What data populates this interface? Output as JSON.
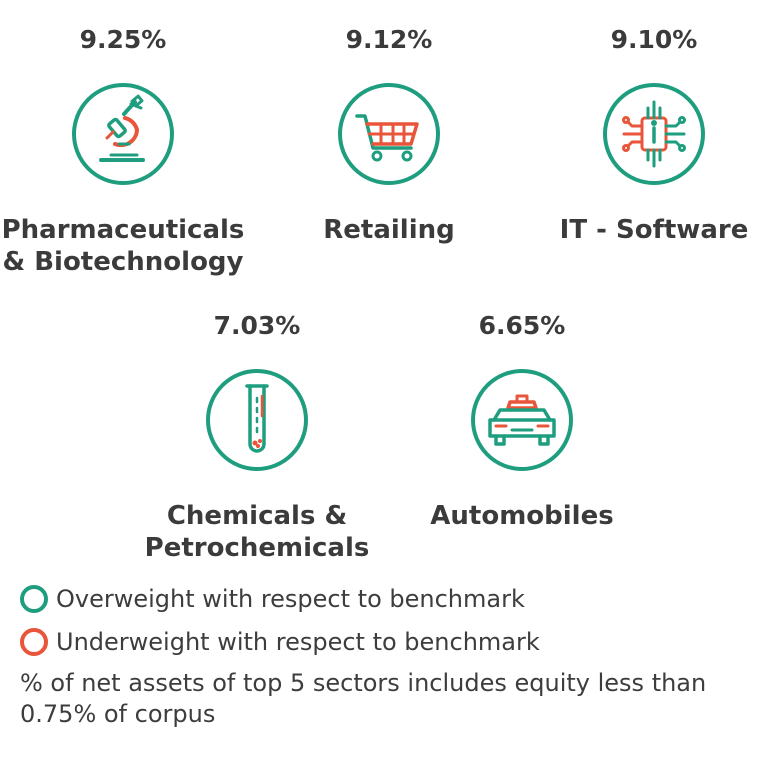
{
  "colors": {
    "overweight": "#1f9e7f",
    "underweight": "#e8553a",
    "text": "#3b3b3b"
  },
  "sectors": [
    {
      "percent": "9.25%",
      "name_line1": "Pharmaceuticals",
      "name_line2": "& Biotechnology",
      "icon": "microscope-icon",
      "weight": "overweight"
    },
    {
      "percent": "9.12%",
      "name_line1": "Retailing",
      "name_line2": "",
      "icon": "shopping-cart-icon",
      "weight": "overweight"
    },
    {
      "percent": "9.10%",
      "name_line1": "IT - Software",
      "name_line2": "",
      "icon": "circuit-chip-icon",
      "weight": "overweight"
    },
    {
      "percent": "7.03%",
      "name_line1": "Chemicals &",
      "name_line2": "Petrochemicals",
      "icon": "test-tube-icon",
      "weight": "overweight"
    },
    {
      "percent": "6.65%",
      "name_line1": "Automobiles",
      "name_line2": "",
      "icon": "car-icon",
      "weight": "overweight"
    }
  ],
  "legend": {
    "overweight": "Overweight with respect to benchmark",
    "underweight": "Underweight with respect to benchmark"
  },
  "note": "% of net assets of top 5 sectors includes equity less than 0.75% of corpus"
}
